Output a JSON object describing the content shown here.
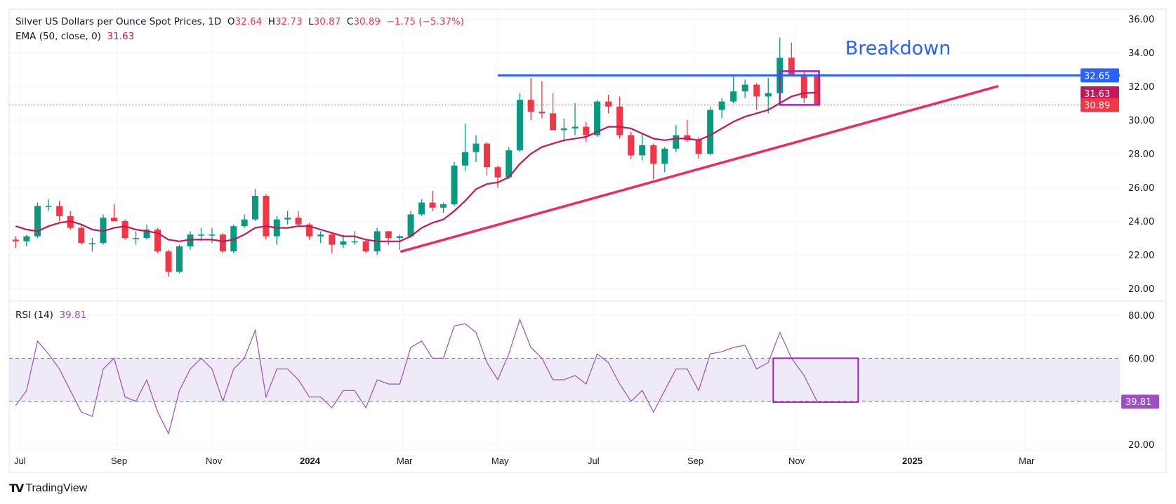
{
  "legend": {
    "title": "Silver US Dollars per Ounce Spot Prices, 1D",
    "o_label": "O",
    "o": "32.64",
    "h_label": "H",
    "h": "32.73",
    "l_label": "L",
    "l": "30.87",
    "c_label": "C",
    "c": "30.89",
    "change": "−1.75 (−5.37%)",
    "ema_label": "EMA (50, close, 0)",
    "ema_value": "31.63",
    "rsi_label": "RSI (14)",
    "rsi_value": "39.81"
  },
  "brand": {
    "logo": "TV",
    "name": "TradingView"
  },
  "colors": {
    "up": "#089981",
    "down": "#f23645",
    "ema": "#c2185b",
    "resistance": "#2962ff",
    "trendline": "#ec2a64",
    "rsi": "#9c4fc0",
    "box": "#9c27b0",
    "last_price": "#f23645"
  },
  "chart_data": [
    {
      "type": "candlestick",
      "pane": "price",
      "ylim": [
        20,
        36
      ],
      "y_ticks": [
        "20.00",
        "22.00",
        "24.00",
        "26.00",
        "28.00",
        "30.00",
        "32.00",
        "34.00",
        "36.00"
      ],
      "x_ticks": [
        {
          "label": "Jul",
          "date": "2023-07-01",
          "bold": false
        },
        {
          "label": "Sep",
          "date": "2023-09-01",
          "bold": false
        },
        {
          "label": "Nov",
          "date": "2023-11-01",
          "bold": false
        },
        {
          "label": "2024",
          "date": "2024-01-01",
          "bold": true
        },
        {
          "label": "Mar",
          "date": "2024-03-01",
          "bold": false
        },
        {
          "label": "May",
          "date": "2024-05-01",
          "bold": false
        },
        {
          "label": "Jul",
          "date": "2024-07-01",
          "bold": false
        },
        {
          "label": "Sep",
          "date": "2024-09-01",
          "bold": false
        },
        {
          "label": "Nov",
          "date": "2024-11-01",
          "bold": false
        },
        {
          "label": "2025",
          "date": "2025-01-01",
          "bold": true
        },
        {
          "label": "Mar",
          "date": "2025-03-01",
          "bold": false
        }
      ],
      "grid": true,
      "candles": [
        [
          "2023-06-26",
          22.9,
          23.1,
          22.4,
          22.8
        ],
        [
          "2023-07-03",
          22.8,
          23.2,
          22.5,
          23.1
        ],
        [
          "2023-07-10",
          23.1,
          25.1,
          23.0,
          24.9
        ],
        [
          "2023-07-17",
          24.9,
          25.3,
          24.6,
          24.9
        ],
        [
          "2023-07-24",
          24.9,
          25.2,
          24.0,
          24.3
        ],
        [
          "2023-07-31",
          24.3,
          24.6,
          23.5,
          23.6
        ],
        [
          "2023-08-07",
          23.6,
          23.8,
          22.6,
          22.7
        ],
        [
          "2023-08-14",
          22.7,
          23.0,
          22.2,
          22.7
        ],
        [
          "2023-08-21",
          22.7,
          24.4,
          22.6,
          24.2
        ],
        [
          "2023-08-28",
          24.2,
          25.0,
          24.0,
          24.0
        ],
        [
          "2023-09-04",
          24.0,
          24.1,
          22.9,
          23.0
        ],
        [
          "2023-09-11",
          23.0,
          23.4,
          22.6,
          23.0
        ],
        [
          "2023-09-18",
          23.0,
          23.8,
          22.9,
          23.5
        ],
        [
          "2023-09-25",
          23.5,
          23.6,
          22.1,
          22.2
        ],
        [
          "2023-10-02",
          22.2,
          22.3,
          20.7,
          21.0
        ],
        [
          "2023-10-09",
          21.0,
          22.6,
          20.9,
          22.5
        ],
        [
          "2023-10-16",
          22.5,
          23.4,
          22.3,
          23.2
        ],
        [
          "2023-10-23",
          23.2,
          23.6,
          22.8,
          23.2
        ],
        [
          "2023-10-30",
          23.2,
          23.6,
          22.7,
          23.2
        ],
        [
          "2023-11-06",
          23.2,
          23.3,
          22.1,
          22.2
        ],
        [
          "2023-11-13",
          22.2,
          23.8,
          22.1,
          23.7
        ],
        [
          "2023-11-20",
          23.7,
          24.4,
          23.6,
          24.1
        ],
        [
          "2023-11-27",
          24.1,
          25.9,
          24.0,
          25.5
        ],
        [
          "2023-12-04",
          25.5,
          25.6,
          22.9,
          23.1
        ],
        [
          "2023-12-11",
          23.1,
          24.3,
          22.6,
          24.1
        ],
        [
          "2023-12-18",
          24.1,
          24.6,
          23.8,
          24.2
        ],
        [
          "2023-12-25",
          24.2,
          24.6,
          23.7,
          23.8
        ],
        [
          "2024-01-01",
          23.8,
          23.9,
          22.9,
          23.1
        ],
        [
          "2024-01-08",
          23.1,
          23.4,
          22.7,
          23.2
        ],
        [
          "2024-01-15",
          23.2,
          23.3,
          22.1,
          22.6
        ],
        [
          "2024-01-22",
          22.6,
          23.2,
          22.4,
          22.8
        ],
        [
          "2024-01-29",
          22.8,
          23.4,
          22.6,
          22.8
        ],
        [
          "2024-02-05",
          22.8,
          22.9,
          22.1,
          22.2
        ],
        [
          "2024-02-12",
          22.2,
          23.6,
          22.0,
          23.4
        ],
        [
          "2024-02-19",
          23.4,
          23.4,
          22.6,
          23.0
        ],
        [
          "2024-02-26",
          23.0,
          23.2,
          22.3,
          23.1
        ],
        [
          "2024-03-04",
          23.1,
          24.6,
          23.0,
          24.4
        ],
        [
          "2024-03-11",
          24.4,
          25.3,
          24.3,
          25.1
        ],
        [
          "2024-03-18",
          25.1,
          25.8,
          24.6,
          24.8
        ],
        [
          "2024-03-25",
          24.8,
          25.1,
          24.5,
          25.0
        ],
        [
          "2024-04-01",
          25.0,
          27.5,
          24.9,
          27.3
        ],
        [
          "2024-04-08",
          27.3,
          29.8,
          27.0,
          28.1
        ],
        [
          "2024-04-15",
          28.1,
          29.1,
          27.5,
          28.6
        ],
        [
          "2024-04-22",
          28.6,
          28.7,
          26.7,
          27.2
        ],
        [
          "2024-04-29",
          27.2,
          27.3,
          26.0,
          26.6
        ],
        [
          "2024-05-06",
          26.6,
          28.4,
          26.5,
          28.2
        ],
        [
          "2024-05-13",
          28.2,
          31.6,
          28.1,
          31.2
        ],
        [
          "2024-05-20",
          31.2,
          32.5,
          30.0,
          30.5
        ],
        [
          "2024-05-27",
          30.5,
          32.3,
          30.1,
          30.4
        ],
        [
          "2024-06-03",
          30.4,
          31.6,
          29.4,
          29.4
        ],
        [
          "2024-06-10",
          29.4,
          30.1,
          28.7,
          29.5
        ],
        [
          "2024-06-17",
          29.5,
          31.0,
          29.1,
          29.6
        ],
        [
          "2024-06-24",
          29.6,
          29.9,
          28.7,
          29.1
        ],
        [
          "2024-07-01",
          29.1,
          31.2,
          29.0,
          31.1
        ],
        [
          "2024-07-08",
          31.1,
          31.5,
          30.4,
          30.8
        ],
        [
          "2024-07-15",
          30.8,
          31.4,
          28.9,
          29.1
        ],
        [
          "2024-07-22",
          29.1,
          29.3,
          27.7,
          27.9
        ],
        [
          "2024-07-29",
          27.9,
          29.2,
          27.6,
          28.5
        ],
        [
          "2024-08-05",
          28.5,
          28.6,
          26.5,
          27.4
        ],
        [
          "2024-08-12",
          27.4,
          28.4,
          26.9,
          28.3
        ],
        [
          "2024-08-19",
          28.3,
          29.7,
          28.1,
          29.1
        ],
        [
          "2024-08-26",
          29.1,
          30.0,
          28.7,
          28.8
        ],
        [
          "2024-09-02",
          28.8,
          29.0,
          27.7,
          28.0
        ],
        [
          "2024-09-09",
          28.0,
          30.8,
          27.9,
          30.6
        ],
        [
          "2024-09-16",
          30.6,
          31.3,
          30.1,
          31.1
        ],
        [
          "2024-09-23",
          31.1,
          32.7,
          31.0,
          31.7
        ],
        [
          "2024-09-30",
          31.7,
          32.4,
          31.3,
          32.1
        ],
        [
          "2024-10-07",
          32.1,
          32.2,
          30.6,
          31.4
        ],
        [
          "2024-10-14",
          31.4,
          32.5,
          30.4,
          31.6
        ],
        [
          "2024-10-21",
          31.6,
          34.9,
          31.5,
          33.7
        ],
        [
          "2024-10-28",
          33.7,
          34.6,
          32.6,
          32.7
        ],
        [
          "2024-11-04",
          32.7,
          32.9,
          31.0,
          31.3
        ],
        [
          "2024-11-11",
          32.64,
          32.73,
          30.87,
          30.89
        ]
      ],
      "ema": {
        "label": "EMA (50, close, 0)",
        "values": [
          23.7,
          23.5,
          23.4,
          23.7,
          23.9,
          24.0,
          23.8,
          23.5,
          23.4,
          23.6,
          23.7,
          23.5,
          23.4,
          23.3,
          22.9,
          22.8,
          22.9,
          22.9,
          22.9,
          22.8,
          22.9,
          23.2,
          23.6,
          23.7,
          23.6,
          23.6,
          23.7,
          23.7,
          23.5,
          23.3,
          23.1,
          23.1,
          22.9,
          22.8,
          22.8,
          22.8,
          23.1,
          23.6,
          23.9,
          24.1,
          24.6,
          25.2,
          25.9,
          26.2,
          26.3,
          26.6,
          27.4,
          28.0,
          28.4,
          28.6,
          28.8,
          28.9,
          29.0,
          29.3,
          29.6,
          29.6,
          29.5,
          29.2,
          28.9,
          28.8,
          28.9,
          28.9,
          28.8,
          29.1,
          29.5,
          29.9,
          30.2,
          30.4,
          30.6,
          31.0,
          31.4,
          31.6,
          31.63
        ]
      },
      "resistance_line": {
        "price": 32.65,
        "from": "2024-05-01"
      },
      "trendline": {
        "from": [
          "2024-02-29",
          22.2
        ],
        "to": [
          "2025-02-15",
          32.0
        ]
      },
      "box": {
        "from": "2024-10-23",
        "to": "2024-11-14",
        "top": 32.9,
        "bottom": 30.9
      },
      "annotation": "Breakdown",
      "annotation_anchor": [
        "2024-11-28",
        33.9
      ],
      "badges": [
        {
          "value": "32.65",
          "color": "#2962ff"
        },
        {
          "value": "31.63",
          "color": "#c2185b"
        },
        {
          "value": "30.89",
          "color": "#f23645"
        }
      ],
      "last_price": 30.89
    },
    {
      "type": "line",
      "pane": "rsi",
      "label": "RSI (14)",
      "ylim": [
        20,
        80
      ],
      "y_ticks": [
        "20.00",
        "60.00",
        "80.00"
      ],
      "band": [
        40,
        60
      ],
      "values": [
        38,
        45,
        68,
        62,
        55,
        45,
        35,
        33,
        55,
        60,
        42,
        40,
        50,
        35,
        25,
        45,
        55,
        60,
        55,
        40,
        55,
        60,
        73,
        42,
        55,
        55,
        50,
        42,
        42,
        37,
        45,
        45,
        37,
        50,
        48,
        48,
        65,
        68,
        60,
        60,
        75,
        76,
        72,
        58,
        50,
        62,
        78,
        65,
        60,
        50,
        50,
        52,
        48,
        62,
        58,
        48,
        40,
        45,
        35,
        45,
        55,
        55,
        45,
        62,
        63,
        65,
        66,
        55,
        58,
        72,
        60,
        52,
        39.81
      ],
      "box": {
        "from": "2024-10-19",
        "to": "2024-12-05",
        "top": 60,
        "bottom": 39.6
      },
      "badge": {
        "value": "39.81",
        "color": "#9c4fc0"
      }
    }
  ]
}
